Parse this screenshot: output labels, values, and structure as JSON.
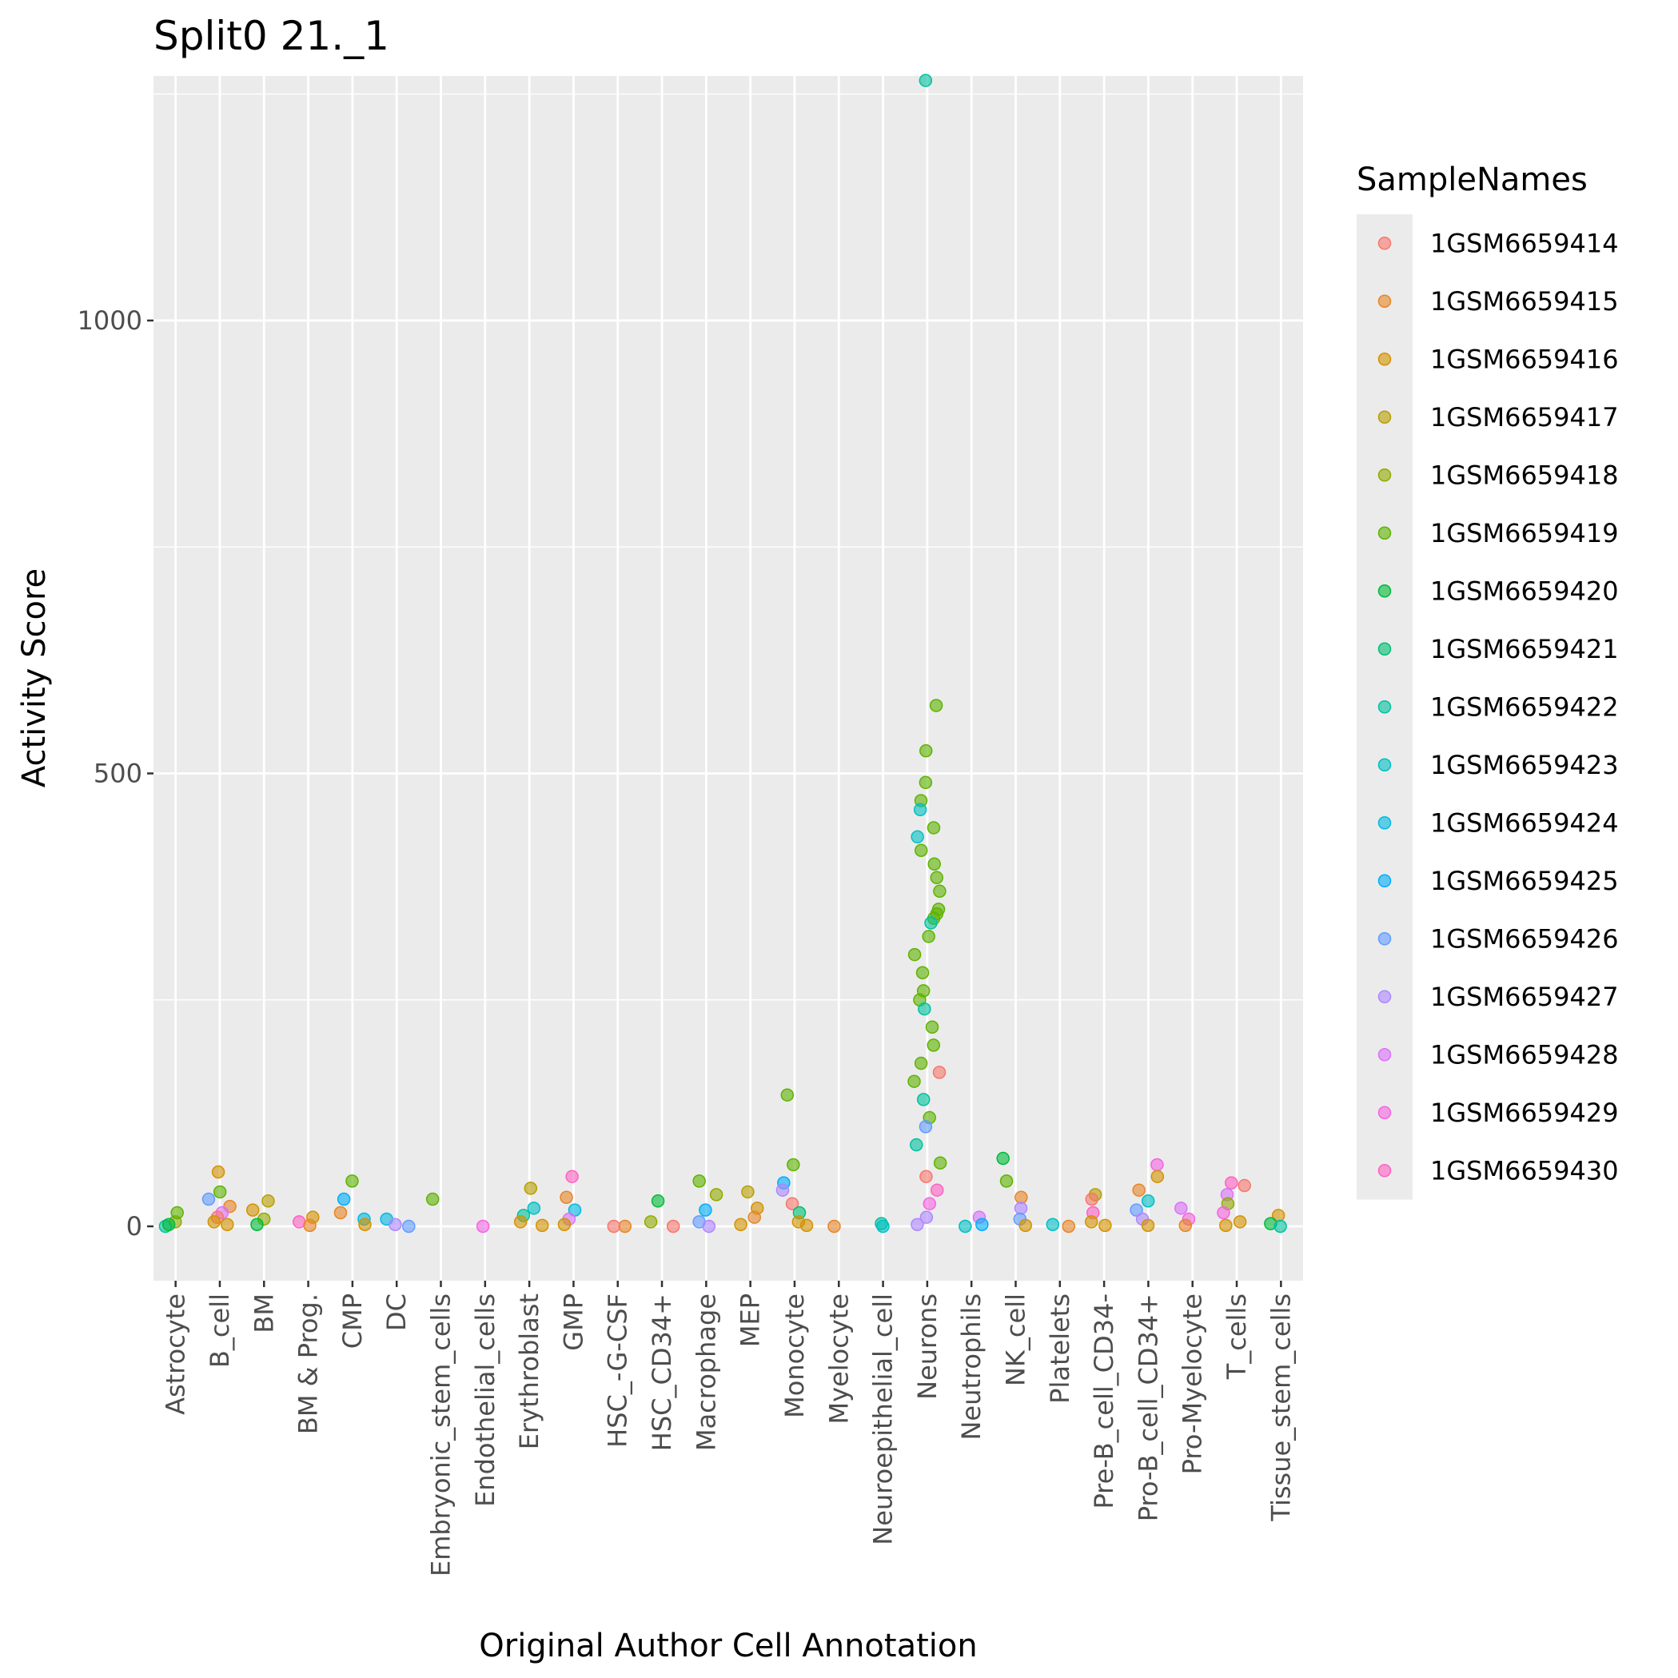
{
  "chart_data": {
    "type": "scatter",
    "title": "Split0 21._1",
    "xlabel": "Original Author Cell Annotation",
    "ylabel": "Activity Score",
    "categories": [
      "Astrocyte",
      "B_cell",
      "BM",
      "BM & Prog.",
      "CMP",
      "DC",
      "Embryonic_stem_cells",
      "Endothelial_cells",
      "Erythroblast",
      "GMP",
      "HSC_-G-CSF",
      "HSC_CD34+",
      "Macrophage",
      "MEP",
      "Monocyte",
      "Myelocyte",
      "Neuroepithelial_cell",
      "Neurons",
      "Neutrophils",
      "NK_cell",
      "Platelets",
      "Pre-B_cell_CD34-",
      "Pro-B_cell_CD34+",
      "Pro-Myelocyte",
      "T_cells",
      "Tissue_stem_cells"
    ],
    "ylim": [
      -60,
      1270
    ],
    "yticks": [
      0,
      500,
      1000
    ],
    "grid": true,
    "legend": {
      "title": "SampleNames",
      "position": "right",
      "entries": [
        {
          "name": "1GSM6659414",
          "color": "#F8766D"
        },
        {
          "name": "1GSM6659415",
          "color": "#E88526"
        },
        {
          "name": "1GSM6659416",
          "color": "#D39200"
        },
        {
          "name": "1GSM6659417",
          "color": "#B79F00"
        },
        {
          "name": "1GSM6659418",
          "color": "#93AA00"
        },
        {
          "name": "1GSM6659419",
          "color": "#5EB300"
        },
        {
          "name": "1GSM6659420",
          "color": "#00BA38"
        },
        {
          "name": "1GSM6659421",
          "color": "#00BF74"
        },
        {
          "name": "1GSM6659422",
          "color": "#00C19F"
        },
        {
          "name": "1GSM6659423",
          "color": "#00BFC4"
        },
        {
          "name": "1GSM6659424",
          "color": "#00B9E3"
        },
        {
          "name": "1GSM6659425",
          "color": "#00ADFA"
        },
        {
          "name": "1GSM6659426",
          "color": "#619CFF"
        },
        {
          "name": "1GSM6659427",
          "color": "#AE87FF"
        },
        {
          "name": "1GSM6659428",
          "color": "#DB72FB"
        },
        {
          "name": "1GSM6659429",
          "color": "#F564E3"
        },
        {
          "name": "1GSM6659430",
          "color": "#FF61C3"
        }
      ]
    },
    "points": [
      {
        "category": "Astrocyte",
        "y": 5,
        "sample": "1GSM6659418"
      },
      {
        "category": "Astrocyte",
        "y": 15,
        "sample": "1GSM6659419"
      },
      {
        "category": "Astrocyte",
        "y": 0,
        "sample": "1GSM6659422"
      },
      {
        "category": "Astrocyte",
        "y": 2,
        "sample": "1GSM6659420"
      },
      {
        "category": "B_cell",
        "y": 60,
        "sample": "1GSM6659416"
      },
      {
        "category": "B_cell",
        "y": 38,
        "sample": "1GSM6659419"
      },
      {
        "category": "B_cell",
        "y": 30,
        "sample": "1GSM6659426"
      },
      {
        "category": "B_cell",
        "y": 22,
        "sample": "1GSM6659415"
      },
      {
        "category": "B_cell",
        "y": 15,
        "sample": "1GSM6659428"
      },
      {
        "category": "B_cell",
        "y": 10,
        "sample": "1GSM6659414"
      },
      {
        "category": "B_cell",
        "y": 5,
        "sample": "1GSM6659416"
      },
      {
        "category": "B_cell",
        "y": 2,
        "sample": "1GSM6659416"
      },
      {
        "category": "BM",
        "y": 28,
        "sample": "1GSM6659417"
      },
      {
        "category": "BM",
        "y": 18,
        "sample": "1GSM6659416"
      },
      {
        "category": "BM",
        "y": 8,
        "sample": "1GSM6659418"
      },
      {
        "category": "BM",
        "y": 2,
        "sample": "1GSM6659420"
      },
      {
        "category": "BM & Prog.",
        "y": 10,
        "sample": "1GSM6659416"
      },
      {
        "category": "BM & Prog.",
        "y": 5,
        "sample": "1GSM6659430"
      },
      {
        "category": "BM & Prog.",
        "y": 1,
        "sample": "1GSM6659415"
      },
      {
        "category": "CMP",
        "y": 50,
        "sample": "1GSM6659419"
      },
      {
        "category": "CMP",
        "y": 30,
        "sample": "1GSM6659425"
      },
      {
        "category": "CMP",
        "y": 15,
        "sample": "1GSM6659415"
      },
      {
        "category": "CMP",
        "y": 8,
        "sample": "1GSM6659424"
      },
      {
        "category": "CMP",
        "y": 2,
        "sample": "1GSM6659416"
      },
      {
        "category": "DC",
        "y": 8,
        "sample": "1GSM6659424"
      },
      {
        "category": "DC",
        "y": 2,
        "sample": "1GSM6659427"
      },
      {
        "category": "DC",
        "y": 0,
        "sample": "1GSM6659426"
      },
      {
        "category": "Embryonic_stem_cells",
        "y": 30,
        "sample": "1GSM6659419"
      },
      {
        "category": "Endothelial_cells",
        "y": 0,
        "sample": "1GSM6659429"
      },
      {
        "category": "Erythroblast",
        "y": 42,
        "sample": "1GSM6659417"
      },
      {
        "category": "Erythroblast",
        "y": 20,
        "sample": "1GSM6659423"
      },
      {
        "category": "Erythroblast",
        "y": 12,
        "sample": "1GSM6659422"
      },
      {
        "category": "Erythroblast",
        "y": 5,
        "sample": "1GSM6659416"
      },
      {
        "category": "Erythroblast",
        "y": 1,
        "sample": "1GSM6659416"
      },
      {
        "category": "GMP",
        "y": 55,
        "sample": "1GSM6659430"
      },
      {
        "category": "GMP",
        "y": 32,
        "sample": "1GSM6659415"
      },
      {
        "category": "GMP",
        "y": 18,
        "sample": "1GSM6659424"
      },
      {
        "category": "GMP",
        "y": 8,
        "sample": "1GSM6659428"
      },
      {
        "category": "GMP",
        "y": 2,
        "sample": "1GSM6659416"
      },
      {
        "category": "HSC_-G-CSF",
        "y": 0,
        "sample": "1GSM6659415"
      },
      {
        "category": "HSC_-G-CSF",
        "y": 0,
        "sample": "1GSM6659414"
      },
      {
        "category": "HSC_CD34+",
        "y": 28,
        "sample": "1GSM6659420"
      },
      {
        "category": "HSC_CD34+",
        "y": 5,
        "sample": "1GSM6659418"
      },
      {
        "category": "HSC_CD34+",
        "y": 0,
        "sample": "1GSM6659414"
      },
      {
        "category": "Macrophage",
        "y": 50,
        "sample": "1GSM6659419"
      },
      {
        "category": "Macrophage",
        "y": 35,
        "sample": "1GSM6659418"
      },
      {
        "category": "Macrophage",
        "y": 18,
        "sample": "1GSM6659425"
      },
      {
        "category": "Macrophage",
        "y": 5,
        "sample": "1GSM6659426"
      },
      {
        "category": "Macrophage",
        "y": 0,
        "sample": "1GSM6659427"
      },
      {
        "category": "MEP",
        "y": 38,
        "sample": "1GSM6659417"
      },
      {
        "category": "MEP",
        "y": 20,
        "sample": "1GSM6659416"
      },
      {
        "category": "MEP",
        "y": 10,
        "sample": "1GSM6659415"
      },
      {
        "category": "MEP",
        "y": 2,
        "sample": "1GSM6659416"
      },
      {
        "category": "Monocyte",
        "y": 145,
        "sample": "1GSM6659419"
      },
      {
        "category": "Monocyte",
        "y": 68,
        "sample": "1GSM6659419"
      },
      {
        "category": "Monocyte",
        "y": 48,
        "sample": "1GSM6659425"
      },
      {
        "category": "Monocyte",
        "y": 40,
        "sample": "1GSM6659427"
      },
      {
        "category": "Monocyte",
        "y": 25,
        "sample": "1GSM6659414"
      },
      {
        "category": "Monocyte",
        "y": 15,
        "sample": "1GSM6659421"
      },
      {
        "category": "Monocyte",
        "y": 5,
        "sample": "1GSM6659416"
      },
      {
        "category": "Monocyte",
        "y": 1,
        "sample": "1GSM6659416"
      },
      {
        "category": "Myelocyte",
        "y": 0,
        "sample": "1GSM6659415"
      },
      {
        "category": "Neuroepithelial_cell",
        "y": 3,
        "sample": "1GSM6659422"
      },
      {
        "category": "Neuroepithelial_cell",
        "y": 0,
        "sample": "1GSM6659423"
      },
      {
        "category": "Neurons",
        "y": 1265,
        "sample": "1GSM6659422"
      },
      {
        "category": "Neurons",
        "y": 575,
        "sample": "1GSM6659419"
      },
      {
        "category": "Neurons",
        "y": 525,
        "sample": "1GSM6659419"
      },
      {
        "category": "Neurons",
        "y": 490,
        "sample": "1GSM6659419"
      },
      {
        "category": "Neurons",
        "y": 470,
        "sample": "1GSM6659419"
      },
      {
        "category": "Neurons",
        "y": 460,
        "sample": "1GSM6659423"
      },
      {
        "category": "Neurons",
        "y": 440,
        "sample": "1GSM6659419"
      },
      {
        "category": "Neurons",
        "y": 430,
        "sample": "1GSM6659423"
      },
      {
        "category": "Neurons",
        "y": 415,
        "sample": "1GSM6659419"
      },
      {
        "category": "Neurons",
        "y": 400,
        "sample": "1GSM6659419"
      },
      {
        "category": "Neurons",
        "y": 385,
        "sample": "1GSM6659419"
      },
      {
        "category": "Neurons",
        "y": 370,
        "sample": "1GSM6659419"
      },
      {
        "category": "Neurons",
        "y": 350,
        "sample": "1GSM6659419"
      },
      {
        "category": "Neurons",
        "y": 345,
        "sample": "1GSM6659419"
      },
      {
        "category": "Neurons",
        "y": 340,
        "sample": "1GSM6659419"
      },
      {
        "category": "Neurons",
        "y": 335,
        "sample": "1GSM6659422"
      },
      {
        "category": "Neurons",
        "y": 320,
        "sample": "1GSM6659419"
      },
      {
        "category": "Neurons",
        "y": 300,
        "sample": "1GSM6659419"
      },
      {
        "category": "Neurons",
        "y": 280,
        "sample": "1GSM6659419"
      },
      {
        "category": "Neurons",
        "y": 260,
        "sample": "1GSM6659419"
      },
      {
        "category": "Neurons",
        "y": 250,
        "sample": "1GSM6659419"
      },
      {
        "category": "Neurons",
        "y": 240,
        "sample": "1GSM6659422"
      },
      {
        "category": "Neurons",
        "y": 220,
        "sample": "1GSM6659419"
      },
      {
        "category": "Neurons",
        "y": 200,
        "sample": "1GSM6659419"
      },
      {
        "category": "Neurons",
        "y": 180,
        "sample": "1GSM6659419"
      },
      {
        "category": "Neurons",
        "y": 170,
        "sample": "1GSM6659414"
      },
      {
        "category": "Neurons",
        "y": 160,
        "sample": "1GSM6659419"
      },
      {
        "category": "Neurons",
        "y": 140,
        "sample": "1GSM6659422"
      },
      {
        "category": "Neurons",
        "y": 120,
        "sample": "1GSM6659419"
      },
      {
        "category": "Neurons",
        "y": 110,
        "sample": "1GSM6659426"
      },
      {
        "category": "Neurons",
        "y": 90,
        "sample": "1GSM6659422"
      },
      {
        "category": "Neurons",
        "y": 70,
        "sample": "1GSM6659419"
      },
      {
        "category": "Neurons",
        "y": 55,
        "sample": "1GSM6659414"
      },
      {
        "category": "Neurons",
        "y": 40,
        "sample": "1GSM6659430"
      },
      {
        "category": "Neurons",
        "y": 25,
        "sample": "1GSM6659429"
      },
      {
        "category": "Neurons",
        "y": 10,
        "sample": "1GSM6659427"
      },
      {
        "category": "Neurons",
        "y": 2,
        "sample": "1GSM6659427"
      },
      {
        "category": "Neutrophils",
        "y": 10,
        "sample": "1GSM6659428"
      },
      {
        "category": "Neutrophils",
        "y": 2,
        "sample": "1GSM6659425"
      },
      {
        "category": "Neutrophils",
        "y": 0,
        "sample": "1GSM6659423"
      },
      {
        "category": "NK_cell",
        "y": 75,
        "sample": "1GSM6659420"
      },
      {
        "category": "NK_cell",
        "y": 50,
        "sample": "1GSM6659419"
      },
      {
        "category": "NK_cell",
        "y": 32,
        "sample": "1GSM6659415"
      },
      {
        "category": "NK_cell",
        "y": 20,
        "sample": "1GSM6659427"
      },
      {
        "category": "NK_cell",
        "y": 8,
        "sample": "1GSM6659426"
      },
      {
        "category": "NK_cell",
        "y": 1,
        "sample": "1GSM6659416"
      },
      {
        "category": "Platelets",
        "y": 2,
        "sample": "1GSM6659423"
      },
      {
        "category": "Platelets",
        "y": 0,
        "sample": "1GSM6659415"
      },
      {
        "category": "Pre-B_cell_CD34-",
        "y": 35,
        "sample": "1GSM6659417"
      },
      {
        "category": "Pre-B_cell_CD34-",
        "y": 30,
        "sample": "1GSM6659414"
      },
      {
        "category": "Pre-B_cell_CD34-",
        "y": 15,
        "sample": "1GSM6659430"
      },
      {
        "category": "Pre-B_cell_CD34-",
        "y": 5,
        "sample": "1GSM6659416"
      },
      {
        "category": "Pre-B_cell_CD34-",
        "y": 1,
        "sample": "1GSM6659416"
      },
      {
        "category": "Pro-B_cell_CD34+",
        "y": 68,
        "sample": "1GSM6659429"
      },
      {
        "category": "Pro-B_cell_CD34+",
        "y": 55,
        "sample": "1GSM6659416"
      },
      {
        "category": "Pro-B_cell_CD34+",
        "y": 40,
        "sample": "1GSM6659415"
      },
      {
        "category": "Pro-B_cell_CD34+",
        "y": 28,
        "sample": "1GSM6659423"
      },
      {
        "category": "Pro-B_cell_CD34+",
        "y": 18,
        "sample": "1GSM6659426"
      },
      {
        "category": "Pro-B_cell_CD34+",
        "y": 8,
        "sample": "1GSM6659427"
      },
      {
        "category": "Pro-B_cell_CD34+",
        "y": 1,
        "sample": "1GSM6659416"
      },
      {
        "category": "Pro-Myelocyte",
        "y": 20,
        "sample": "1GSM6659428"
      },
      {
        "category": "Pro-Myelocyte",
        "y": 8,
        "sample": "1GSM6659429"
      },
      {
        "category": "Pro-Myelocyte",
        "y": 1,
        "sample": "1GSM6659415"
      },
      {
        "category": "T_cells",
        "y": 48,
        "sample": "1GSM6659430"
      },
      {
        "category": "T_cells",
        "y": 45,
        "sample": "1GSM6659414"
      },
      {
        "category": "T_cells",
        "y": 35,
        "sample": "1GSM6659428"
      },
      {
        "category": "T_cells",
        "y": 25,
        "sample": "1GSM6659418"
      },
      {
        "category": "T_cells",
        "y": 15,
        "sample": "1GSM6659429"
      },
      {
        "category": "T_cells",
        "y": 5,
        "sample": "1GSM6659416"
      },
      {
        "category": "T_cells",
        "y": 1,
        "sample": "1GSM6659416"
      },
      {
        "category": "Tissue_stem_cells",
        "y": 12,
        "sample": "1GSM6659416"
      },
      {
        "category": "Tissue_stem_cells",
        "y": 3,
        "sample": "1GSM6659420"
      },
      {
        "category": "Tissue_stem_cells",
        "y": 0,
        "sample": "1GSM6659422"
      }
    ]
  }
}
